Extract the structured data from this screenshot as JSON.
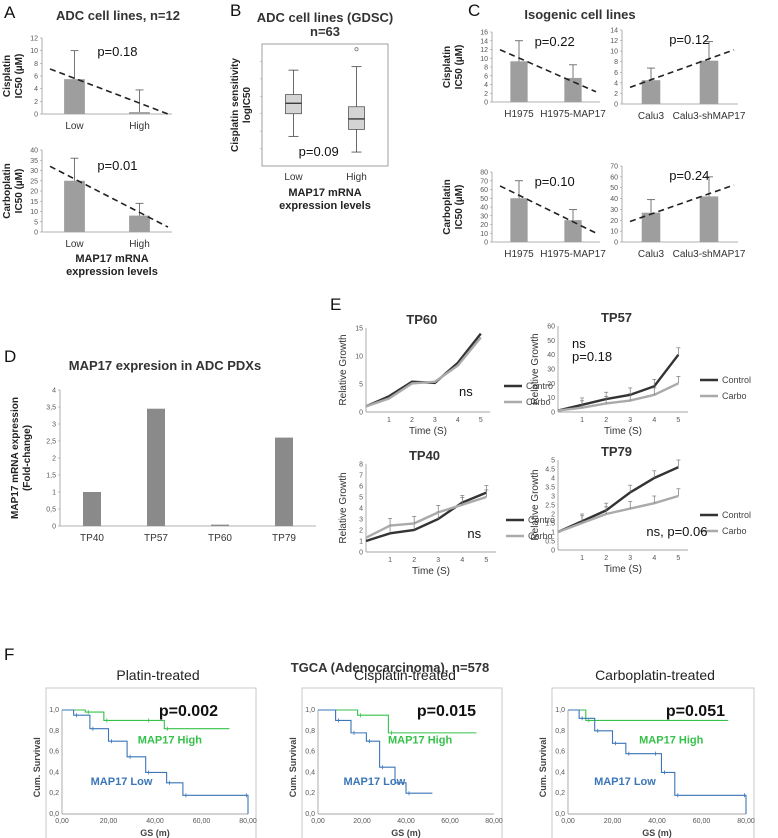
{
  "panels": [
    {
      "letter": "A"
    },
    {
      "letter": "B"
    },
    {
      "letter": "C"
    },
    {
      "letter": "D"
    },
    {
      "letter": "E"
    },
    {
      "letter": "F"
    }
  ],
  "chart_data": [
    {
      "id": "A1",
      "type": "bar",
      "title": "ADC cell lines,  n=12",
      "categories": [
        "Low",
        "High"
      ],
      "values": [
        5.5,
        0.3
      ],
      "errors": [
        4.5,
        3.5
      ],
      "ylabel": [
        "Cisplatin",
        "IC50 (µM)"
      ],
      "ylim": [
        0,
        12
      ],
      "yticks": [
        0,
        2,
        4,
        6,
        8,
        10,
        12
      ],
      "pvalue": "p=0.18",
      "trend": "down"
    },
    {
      "id": "A2",
      "type": "bar",
      "title": "",
      "categories": [
        "Low",
        "High"
      ],
      "values": [
        25,
        8
      ],
      "errors": [
        11,
        6
      ],
      "ylabel": [
        "Carboplatin",
        "IC50 (µM)"
      ],
      "ylim": [
        0,
        40
      ],
      "yticks": [
        0,
        5,
        10,
        15,
        20,
        25,
        30,
        35,
        40
      ],
      "xlabel": [
        "MAP17 mRNA",
        "expression levels"
      ],
      "pvalue": "p=0.01",
      "trend": "down"
    },
    {
      "id": "B",
      "type": "box",
      "title": [
        "ADC cell lines (GDSC)",
        "n=63"
      ],
      "categories": [
        "Low",
        "High"
      ],
      "boxes": [
        {
          "min": 0.17,
          "q1": 0.3,
          "median": 0.36,
          "q3": 0.41,
          "max": 0.55
        },
        {
          "min": 0.08,
          "q1": 0.21,
          "median": 0.27,
          "q3": 0.34,
          "max": 0.57,
          "outliers": [
            0.67
          ]
        }
      ],
      "ylim": [
        0,
        0.7
      ],
      "ylabel": [
        "Cisplatin sensitivity",
        "logIC50"
      ],
      "xlabel": [
        "MAP17 mRNA",
        "expression levels"
      ],
      "pvalue": "p=0.09"
    },
    {
      "id": "C",
      "type": "bar",
      "title": "Isogenic cell lines",
      "subplots": [
        {
          "categories": [
            "H1975",
            "H1975-MAP17"
          ],
          "values": [
            9.3,
            5.5
          ],
          "errors": [
            4.7,
            3
          ],
          "ylim": [
            0,
            16
          ],
          "yticks": [
            0,
            2,
            4,
            6,
            8,
            10,
            12,
            14,
            16
          ],
          "ylabel": [
            "Cisplatin",
            "IC50 (µM)"
          ],
          "pvalue": "p=0.22",
          "trend": "down"
        },
        {
          "categories": [
            "Calu3",
            "Calu3-shMAP17"
          ],
          "values": [
            4.5,
            8.2
          ],
          "errors": [
            2.3,
            3.6
          ],
          "ylim": [
            0,
            14
          ],
          "yticks": [
            0,
            2,
            4,
            6,
            8,
            10,
            12,
            14
          ],
          "pvalue": "p=0.12",
          "trend": "up"
        },
        {
          "categories": [
            "H1975",
            "H1975-MAP17"
          ],
          "values": [
            50,
            25
          ],
          "errors": [
            20,
            12
          ],
          "ylim": [
            0,
            80
          ],
          "yticks": [
            0,
            10,
            20,
            30,
            40,
            50,
            60,
            70,
            80
          ],
          "ylabel": [
            "Carboplatin",
            "IC50 (µM)"
          ],
          "pvalue": "p=0.10",
          "trend": "down"
        },
        {
          "categories": [
            "Calu3",
            "Calu3-shMAP17"
          ],
          "values": [
            27,
            42
          ],
          "errors": [
            12,
            18
          ],
          "ylim": [
            0,
            70
          ],
          "yticks": [
            0,
            10,
            20,
            30,
            40,
            50,
            60,
            70
          ],
          "pvalue": "p=0.24",
          "trend": "up"
        }
      ]
    },
    {
      "id": "D",
      "type": "bar",
      "title": "MAP17 expresion in ADC PDXs",
      "categories": [
        "TP40",
        "TP57",
        "TP60",
        "TP79"
      ],
      "values": [
        1,
        3.45,
        0.04,
        2.6
      ],
      "ylim": [
        0,
        4
      ],
      "yticks": [
        "0",
        "0,5",
        "1",
        "1,5",
        "2",
        "2,5",
        "3",
        "3,5",
        "4"
      ],
      "ylabel": [
        "MAP17 mRNA expression",
        "(Fold-change)"
      ]
    },
    {
      "id": "E",
      "type": "line",
      "subplots": [
        {
          "title": "TP60",
          "x": [
            0,
            1,
            2,
            3,
            4,
            5
          ],
          "ylim": [
            0,
            15
          ],
          "yticks": [
            0,
            5,
            10,
            15
          ],
          "series": [
            {
              "name": "Contro",
              "values": [
                1,
                2.8,
                5.4,
                5.2,
                8.8,
                14
              ]
            },
            {
              "name": "Carbo",
              "values": [
                1,
                2.4,
                5.1,
                5.4,
                8.3,
                13.3
              ]
            }
          ],
          "annotation": "ns",
          "xlabel": "Time (S)",
          "ylabel": "Relative Growth"
        },
        {
          "title": "TP57",
          "x": [
            0,
            1,
            2,
            3,
            4,
            5
          ],
          "ylim": [
            0,
            60
          ],
          "yticks": [
            0,
            10,
            20,
            30,
            40,
            50,
            60
          ],
          "series": [
            {
              "name": "Control",
              "values": [
                1,
                5,
                9,
                12,
                18,
                40
              ]
            },
            {
              "name": "Carbo",
              "values": [
                1,
                3,
                6,
                8,
                12,
                20
              ]
            }
          ],
          "annotation": [
            "ns",
            "p=0.18"
          ],
          "xlabel": "Time (S)",
          "ylabel": "Relative Growth"
        },
        {
          "title": "TP40",
          "x": [
            0,
            1,
            2,
            3,
            4,
            5
          ],
          "ylim": [
            0,
            8
          ],
          "yticks": [
            0,
            1,
            2,
            3,
            4,
            5,
            6,
            7,
            8
          ],
          "series": [
            {
              "name": "Contro",
              "values": [
                1,
                1.7,
                2,
                3,
                4.5,
                5.4
              ]
            },
            {
              "name": "Carbo",
              "values": [
                1.3,
                2.4,
                2.6,
                3.6,
                4.3,
                5
              ]
            }
          ],
          "annotation": "ns",
          "xlabel": "Time (S)",
          "ylabel": "Relative Growth"
        },
        {
          "title": "TP79",
          "x": [
            0,
            1,
            2,
            3,
            4,
            5
          ],
          "ylim": [
            0,
            5
          ],
          "yticks": [
            0,
            0.5,
            1,
            1.5,
            2,
            2.5,
            3,
            3.5,
            4,
            4.5,
            5
          ],
          "series": [
            {
              "name": "Control",
              "values": [
                1,
                1.6,
                2.2,
                3.2,
                4,
                4.6
              ]
            },
            {
              "name": "Carbo",
              "values": [
                1,
                1.5,
                2,
                2.3,
                2.6,
                3
              ]
            }
          ],
          "annotation": "ns, p=0.06",
          "xlabel": "Time (S)",
          "ylabel": "Relative Growth"
        }
      ]
    },
    {
      "id": "F",
      "type": "line",
      "title": "TGCA (Adenocarcinoma), n=578",
      "subplots": [
        {
          "title": "Platin-treated",
          "pvalue": "p=0.002",
          "series": [
            {
              "name": "MAP17 High",
              "color": "#35c24a",
              "points": [
                [
                  0,
                  1
                ],
                [
                  10,
                  0.98
                ],
                [
                  18,
                  0.9
                ],
                [
                  36,
                  0.9
                ],
                [
                  44,
                  0.82
                ],
                [
                  72,
                  0.82
                ]
              ]
            },
            {
              "name": "MAP17 Low",
              "color": "#3a76b8",
              "points": [
                [
                  0,
                  1
                ],
                [
                  5,
                  0.95
                ],
                [
                  12,
                  0.82
                ],
                [
                  20,
                  0.7
                ],
                [
                  28,
                  0.55
                ],
                [
                  36,
                  0.4
                ],
                [
                  45,
                  0.3
                ],
                [
                  52,
                  0.18
                ],
                [
                  78,
                  0.18
                ],
                [
                  80,
                  0
                ]
              ]
            }
          ]
        },
        {
          "title": "Cisplatin-treated",
          "pvalue": "p=0.015",
          "series": [
            {
              "name": "MAP17 High",
              "color": "#35c24a",
              "points": [
                [
                  0,
                  1
                ],
                [
                  18,
                  0.95
                ],
                [
                  32,
                  0.78
                ],
                [
                  72,
                  0.78
                ]
              ]
            },
            {
              "name": "MAP17 Low",
              "color": "#3a76b8",
              "points": [
                [
                  0,
                  1
                ],
                [
                  8,
                  0.9
                ],
                [
                  15,
                  0.78
                ],
                [
                  22,
                  0.7
                ],
                [
                  28,
                  0.45
                ],
                [
                  35,
                  0.3
                ],
                [
                  40,
                  0.2
                ],
                [
                  52,
                  0.2
                ]
              ]
            }
          ]
        },
        {
          "title": "Carboplatin-treated",
          "pvalue": "p=0.051",
          "series": [
            {
              "name": "MAP17 High",
              "color": "#35c24a",
              "points": [
                [
                  0,
                  1
                ],
                [
                  8,
                  0.9
                ],
                [
                  72,
                  0.9
                ]
              ]
            },
            {
              "name": "MAP17 Low",
              "color": "#3a76b8",
              "points": [
                [
                  0,
                  1
                ],
                [
                  5,
                  0.92
                ],
                [
                  12,
                  0.8
                ],
                [
                  20,
                  0.68
                ],
                [
                  26,
                  0.58
                ],
                [
                  38,
                  0.58
                ],
                [
                  42,
                  0.4
                ],
                [
                  48,
                  0.18
                ],
                [
                  78,
                  0.18
                ],
                [
                  80,
                  0
                ]
              ]
            }
          ]
        }
      ],
      "xticks": [
        "0,00",
        "20,00",
        "40,00",
        "60,00",
        "80,00"
      ],
      "yticks": [
        "0,0",
        "0,2",
        "0,4",
        "0,6",
        "0,8",
        "1,0"
      ],
      "xlabel": "GS (m)",
      "ylabel": "Cum. Survival"
    }
  ]
}
